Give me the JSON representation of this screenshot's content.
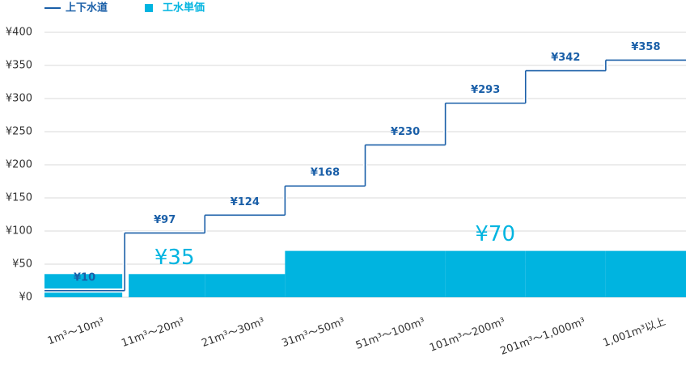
{
  "chart_data": {
    "type": "combo",
    "categories": [
      "1m³～10m³",
      "11m³～20m³",
      "21m³～30m³",
      "31m³～50m³",
      "51m³～100m³",
      "101m³～200m³",
      "201m³～1,000m³",
      "1,001m³以上"
    ],
    "series": [
      {
        "name": "上下水道",
        "type": "step",
        "color": "#1a5fa8",
        "values": [
          10,
          97,
          124,
          168,
          230,
          293,
          342,
          358
        ],
        "value_labels": [
          "¥10",
          "¥97",
          "¥124",
          "¥168",
          "¥230",
          "¥293",
          "¥342",
          "¥358"
        ]
      },
      {
        "name": "工水単価",
        "type": "bar",
        "color": "#00b4e0",
        "values": [
          35,
          35,
          35,
          70,
          70,
          70,
          70,
          70
        ],
        "value_labels": [
          null,
          "¥35",
          null,
          null,
          null,
          "¥70",
          null,
          null
        ]
      }
    ],
    "ylim": [
      0,
      400
    ],
    "yticks": [
      {
        "value": 0,
        "label": "¥0"
      },
      {
        "value": 50,
        "label": "¥50"
      },
      {
        "value": 100,
        "label": "¥100"
      },
      {
        "value": 150,
        "label": "¥150"
      },
      {
        "value": 200,
        "label": "¥200"
      },
      {
        "value": 250,
        "label": "¥250"
      },
      {
        "value": 300,
        "label": "¥300"
      },
      {
        "value": 350,
        "label": "¥350"
      },
      {
        "value": 400,
        "label": "¥400"
      }
    ],
    "grid": true
  }
}
